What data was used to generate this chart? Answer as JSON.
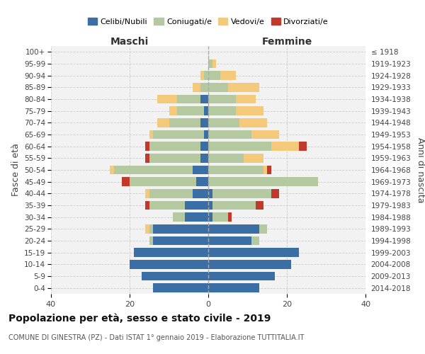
{
  "age_groups": [
    "0-4",
    "5-9",
    "10-14",
    "15-19",
    "20-24",
    "25-29",
    "30-34",
    "35-39",
    "40-44",
    "45-49",
    "50-54",
    "55-59",
    "60-64",
    "65-69",
    "70-74",
    "75-79",
    "80-84",
    "85-89",
    "90-94",
    "95-99",
    "100+"
  ],
  "birth_years": [
    "2014-2018",
    "2009-2013",
    "2004-2008",
    "1999-2003",
    "1994-1998",
    "1989-1993",
    "1984-1988",
    "1979-1983",
    "1974-1978",
    "1969-1973",
    "1964-1968",
    "1959-1963",
    "1954-1958",
    "1949-1953",
    "1944-1948",
    "1939-1943",
    "1934-1938",
    "1929-1933",
    "1924-1928",
    "1919-1923",
    "≤ 1918"
  ],
  "colors": {
    "celibe": "#3a6ea5",
    "coniugato": "#b5c9a0",
    "vedovo": "#f5c97a",
    "divorziato": "#c0392b"
  },
  "maschi": {
    "celibe": [
      14,
      17,
      20,
      19,
      14,
      14,
      6,
      6,
      4,
      3,
      4,
      2,
      2,
      1,
      2,
      1,
      2,
      0,
      0,
      0,
      0
    ],
    "coniugato": [
      0,
      0,
      0,
      0,
      1,
      1,
      3,
      9,
      11,
      17,
      20,
      13,
      13,
      13,
      8,
      7,
      6,
      2,
      1,
      0,
      0
    ],
    "vedovo": [
      0,
      0,
      0,
      0,
      0,
      1,
      0,
      0,
      1,
      0,
      1,
      0,
      0,
      1,
      3,
      2,
      5,
      2,
      1,
      0,
      0
    ],
    "divorziato": [
      0,
      0,
      0,
      0,
      0,
      0,
      0,
      1,
      0,
      2,
      0,
      1,
      1,
      0,
      0,
      0,
      0,
      0,
      0,
      0,
      0
    ]
  },
  "femmine": {
    "nubile": [
      13,
      17,
      21,
      23,
      11,
      13,
      1,
      1,
      1,
      0,
      0,
      0,
      0,
      0,
      0,
      0,
      0,
      0,
      0,
      0,
      0
    ],
    "coniugata": [
      0,
      0,
      0,
      0,
      2,
      2,
      4,
      11,
      15,
      28,
      14,
      9,
      16,
      11,
      8,
      7,
      7,
      5,
      3,
      1,
      0
    ],
    "vedova": [
      0,
      0,
      0,
      0,
      0,
      0,
      0,
      0,
      0,
      0,
      1,
      5,
      7,
      7,
      7,
      7,
      5,
      8,
      4,
      1,
      0
    ],
    "divorziata": [
      0,
      0,
      0,
      0,
      0,
      0,
      1,
      2,
      2,
      0,
      1,
      0,
      2,
      0,
      0,
      0,
      0,
      0,
      0,
      0,
      0
    ]
  },
  "xlim": 40,
  "title": "Popolazione per età, sesso e stato civile - 2019",
  "subtitle": "COMUNE DI GINESTRA (PZ) - Dati ISTAT 1° gennaio 2019 - Elaborazione TUTTITALIA.IT",
  "ylabel_left": "Fasce di età",
  "ylabel_right": "Anni di nascita",
  "legend_labels": [
    "Celibi/Nubili",
    "Coniugati/e",
    "Vedovi/e",
    "Divorziati/e"
  ],
  "maschi_label": "Maschi",
  "femmine_label": "Femmine"
}
